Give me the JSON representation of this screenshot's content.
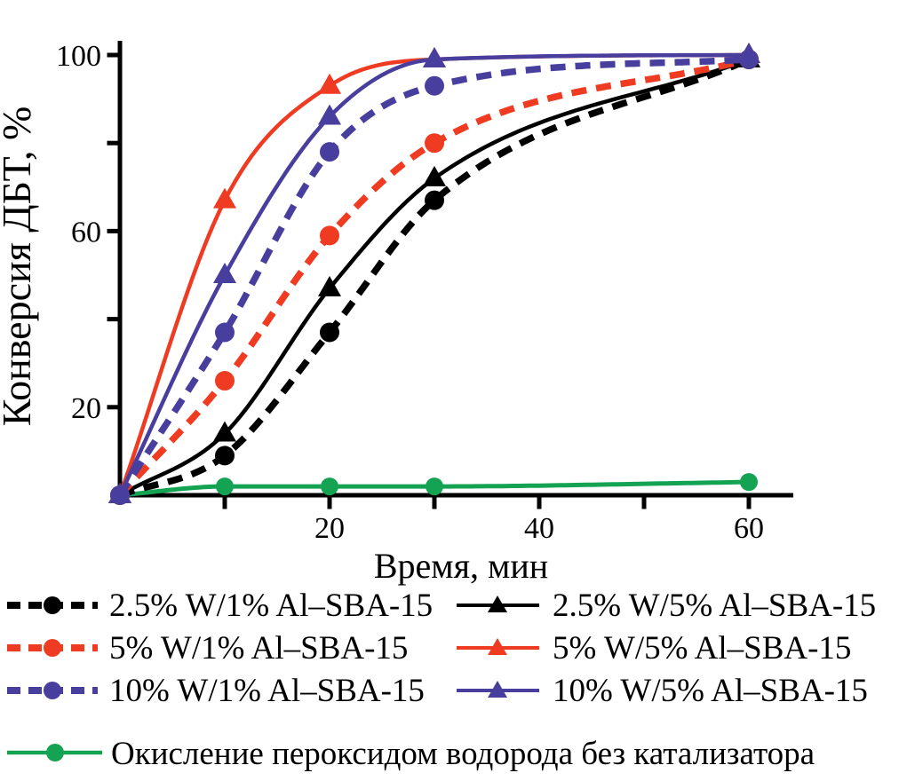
{
  "chart_data": {
    "type": "line",
    "title": "",
    "xlabel": "Время, мин",
    "ylabel": "Конверсия ДБТ, %",
    "grid": false,
    "legend_position": "below",
    "x_axis": {
      "label": "Время, мин",
      "ticks": [
        10,
        20,
        30,
        40,
        50,
        60
      ],
      "labeled_ticks": [
        20,
        40,
        60
      ],
      "range": [
        0,
        64
      ]
    },
    "y_axis": {
      "label": "Конверсия ДБТ, %",
      "ticks": [
        20,
        40,
        60,
        80,
        100
      ],
      "labeled_ticks": [
        20,
        60,
        100
      ],
      "range": [
        0,
        103
      ]
    },
    "x": [
      0,
      10,
      20,
      30,
      60
    ],
    "series": [
      {
        "name": "2.5% W/1% Al–SBA-15",
        "color": "#000000",
        "line_style": "dashed",
        "marker": "circle",
        "values": [
          0,
          9,
          37,
          67,
          99
        ]
      },
      {
        "name": "2.5% W/5% Al–SBA-15",
        "color": "#000000",
        "line_style": "solid",
        "marker": "triangle",
        "values": [
          0,
          14,
          47,
          72,
          99
        ]
      },
      {
        "name": "5% W/1% Al–SBA-15",
        "color": "#ee3b22",
        "line_style": "dashed",
        "marker": "circle",
        "values": [
          0,
          26,
          59,
          80,
          99
        ]
      },
      {
        "name": "5% W/5% Al–SBA-15",
        "color": "#ee3b22",
        "line_style": "solid",
        "marker": "triangle",
        "values": [
          0,
          67,
          93,
          99,
          100
        ]
      },
      {
        "name": "10% W/1% Al–SBA-15",
        "color": "#483e9e",
        "line_style": "dashed",
        "marker": "circle",
        "values": [
          0,
          37,
          78,
          93,
          99
        ]
      },
      {
        "name": "10% W/5% Al–SBA-15",
        "color": "#483e9e",
        "line_style": "solid",
        "marker": "triangle",
        "values": [
          0,
          50,
          86,
          99,
          100
        ]
      },
      {
        "name": "Окисление пероксидом водорода без катализатора",
        "color": "#14a352",
        "line_style": "solid",
        "marker": "circle",
        "values": [
          0,
          2,
          2,
          2,
          3
        ]
      }
    ]
  }
}
